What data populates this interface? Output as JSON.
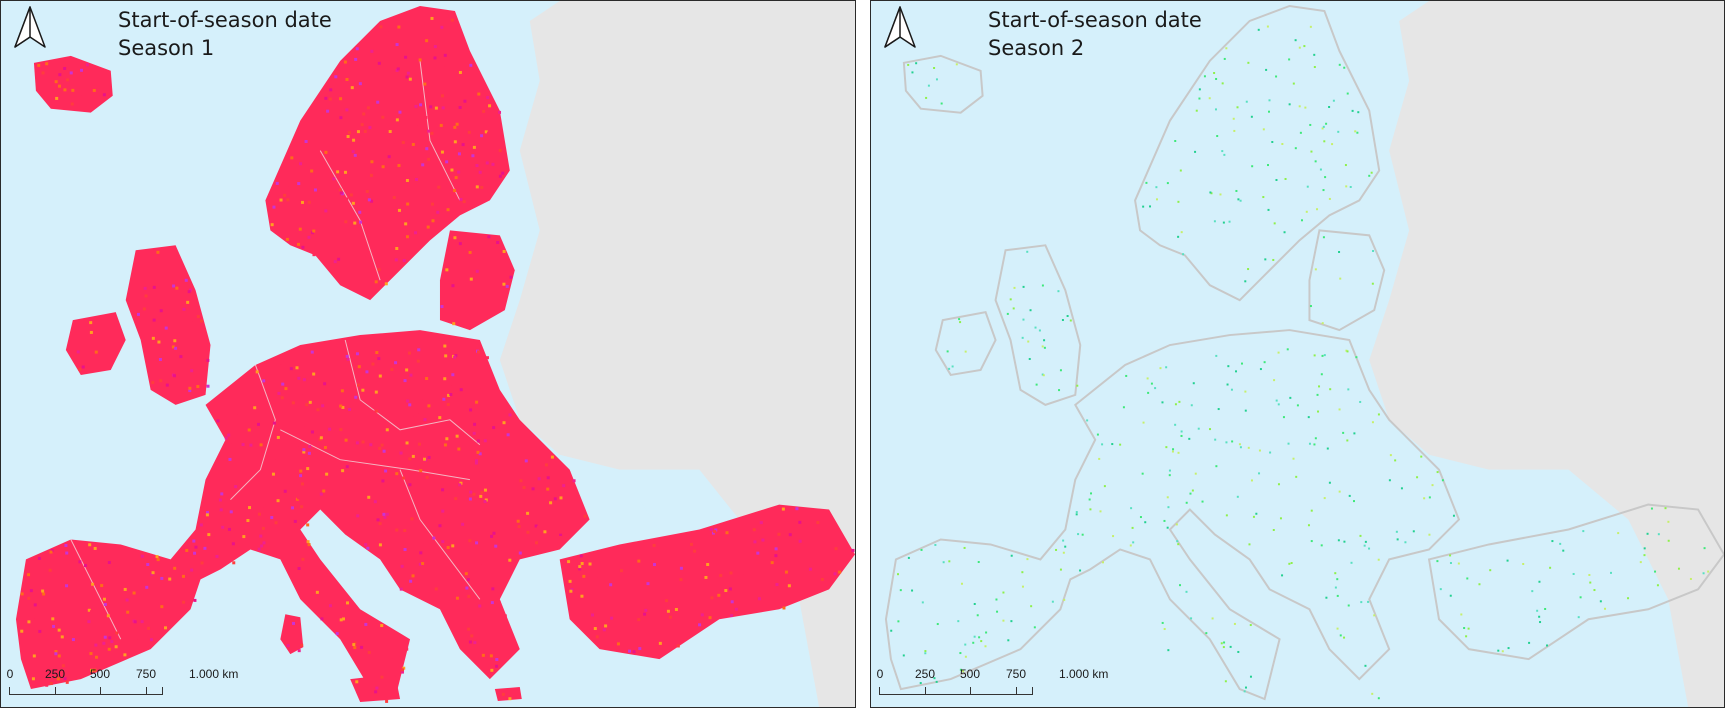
{
  "panels": [
    {
      "title_line1": "Start-of-season date",
      "title_line2": "Season 1",
      "palette": [
        "#ff2a5a",
        "#ff3d3d",
        "#f0208f",
        "#ff6a1a",
        "#c933d6",
        "#ffa020",
        "#e9128a"
      ],
      "scale_labels": [
        "0",
        "250",
        "500",
        "750",
        "1.000 km"
      ]
    },
    {
      "title_line1": "Start-of-season date",
      "title_line2": "Season 2",
      "palette": [
        "#3ee87a",
        "#8ef04a",
        "#22d090",
        "#c6f06a",
        "#58e0c0"
      ],
      "scale_labels": [
        "0",
        "250",
        "500",
        "750",
        "1.000 km"
      ]
    }
  ],
  "colors": {
    "sea": "#d5f0fb",
    "land_outside": "#e6e6e6",
    "border_lines": "#c8c8c8"
  },
  "icons": [
    "north-arrow-icon"
  ]
}
